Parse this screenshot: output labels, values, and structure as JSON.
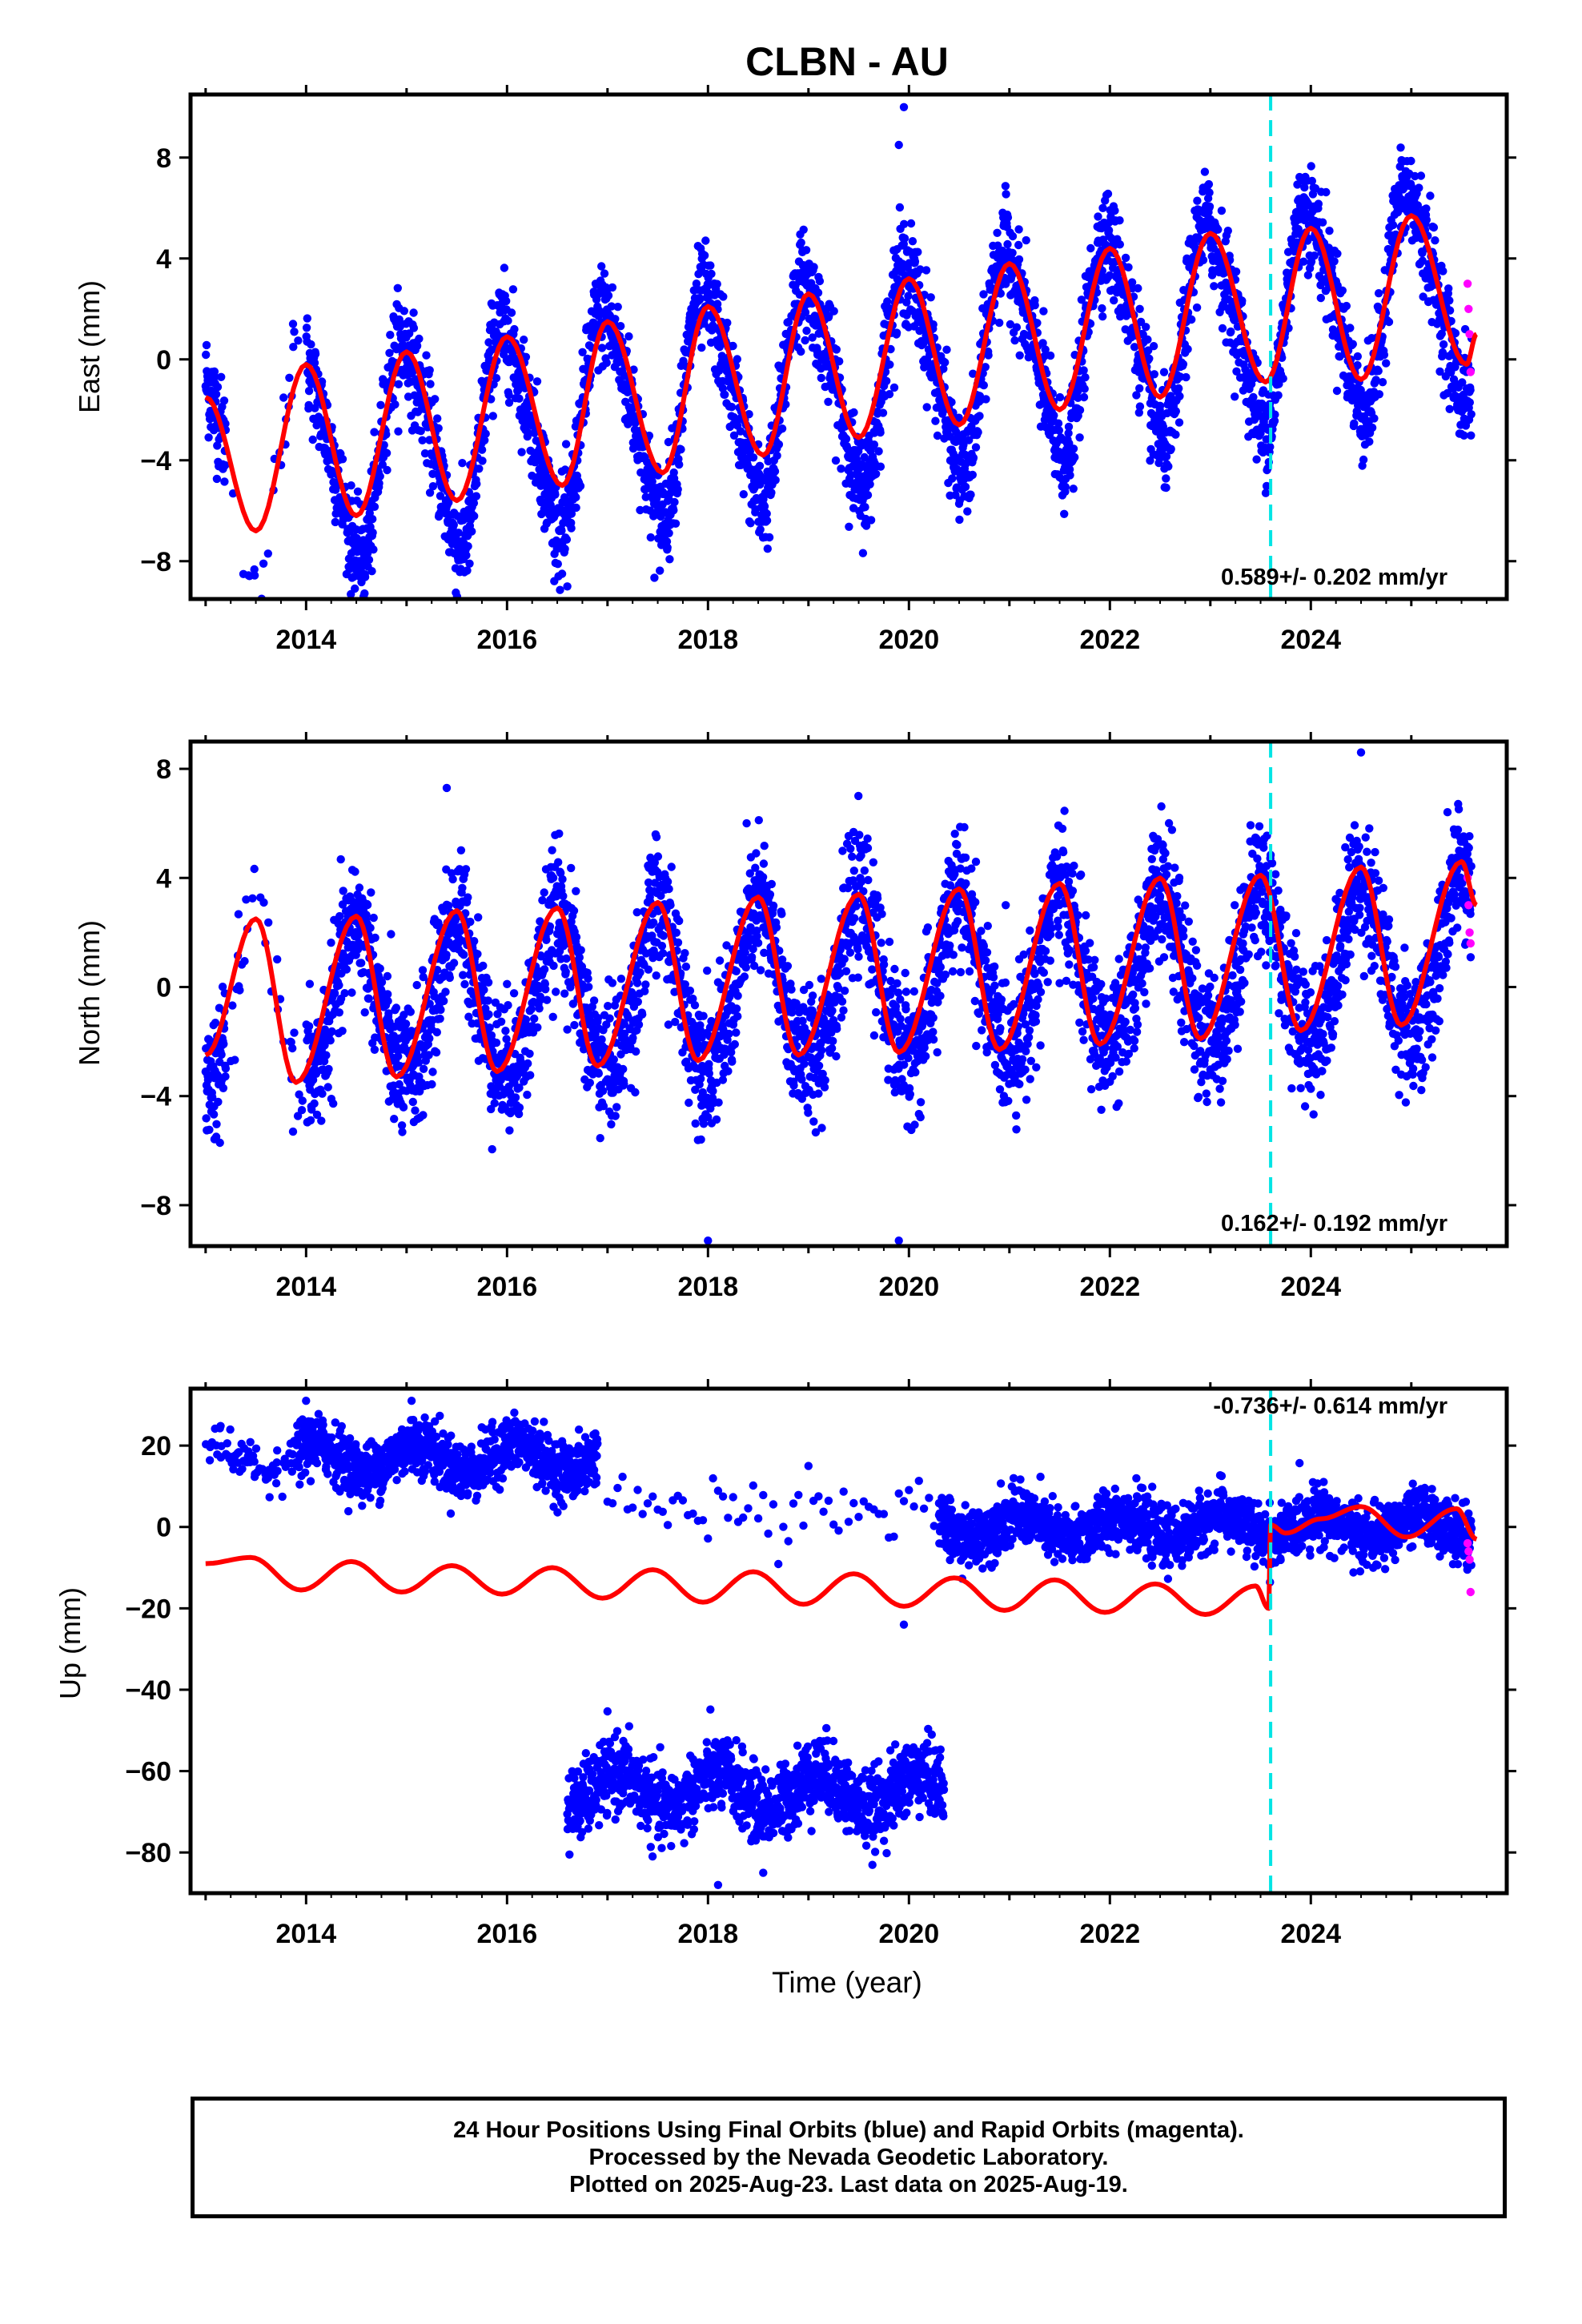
{
  "title": "CLBN - AU",
  "colors": {
    "final": "#0000ff",
    "rapid": "#ff00ff",
    "model": "#ff0000",
    "step": "#00e5e5"
  },
  "x_axis_label": "Time (year)",
  "panels": [
    {
      "ylabel": "East (mm)",
      "rate_text": "0.589+/- 0.202 mm/yr",
      "ylim": [
        -9.5,
        10.5
      ],
      "yticks": [
        -8,
        -4,
        0,
        4,
        8
      ],
      "ytick_labels": [
        "−8",
        "−4",
        "0",
        "4",
        "8"
      ]
    },
    {
      "ylabel": "North (mm)",
      "rate_text": "0.162+/- 0.192 mm/yr",
      "ylim": [
        -9.5,
        9
      ],
      "yticks": [
        -8,
        -4,
        0,
        4,
        8
      ],
      "ytick_labels": [
        "−8",
        "−4",
        "0",
        "4",
        "8"
      ]
    },
    {
      "ylabel": "Up (mm)",
      "rate_text": "-0.736+/- 0.614 mm/yr",
      "ylim": [
        -90,
        34
      ],
      "yticks": [
        -80,
        -60,
        -40,
        -20,
        0,
        20
      ],
      "ytick_labels": [
        "−80",
        "−60",
        "−40",
        "−20",
        "0",
        "20"
      ]
    }
  ],
  "xtick_labels": [
    "2014",
    "2016",
    "2018",
    "2020",
    "2022",
    "2024"
  ],
  "footer": {
    "line1": "24 Hour Positions Using Final Orbits (blue) and Rapid Orbits (magenta).",
    "line2": "Processed by the Nevada Geodetic Laboratory.",
    "line3": "Plotted on 2025-Aug-23. Last data on 2025-Aug-19."
  },
  "chart_data": [
    {
      "type": "scatter",
      "title": "CLBN - AU",
      "ylabel": "East (mm)",
      "xlim": [
        2012.85,
        2025.95
      ],
      "ylim": [
        -9.5,
        10.5
      ],
      "grid": false,
      "rate": "0.589+/- 0.202 mm/yr",
      "step_epoch": 2023.6,
      "series": [
        {
          "name": "Final Orbits (blue)",
          "kind": "points",
          "model": {
            "start": 2013.0,
            "end": 2025.6,
            "offset": -1.0,
            "trend": 0.589,
            "annual_amp": 4.0,
            "annual_peak": 0.0,
            "semi_amp": 0.7,
            "semi_peak": 0.35,
            "noise_sd": 1.0,
            "density_per_year": 330,
            "gap_from": 2013.2,
            "gap_to": 2014.0,
            "gap_density": 30
          },
          "notes_points": [
            [
              2019.95,
              10.0
            ],
            [
              2016.6,
              -9.0
            ],
            [
              2019.9,
              8.5
            ]
          ]
        },
        {
          "name": "Rapid Orbits (magenta)",
          "kind": "points",
          "values": [
            [
              2025.56,
              3.0
            ],
            [
              2025.57,
              2.0
            ],
            [
              2025.58,
              1.0
            ],
            [
              2025.59,
              -0.5
            ]
          ]
        },
        {
          "name": "model",
          "kind": "line",
          "color": "red",
          "samples": [
            [
              2013.0,
              -1.5
            ],
            [
              2013.5,
              -6.8
            ],
            [
              2014.0,
              -0.2
            ],
            [
              2014.5,
              -6.2
            ],
            [
              2015.0,
              0.3
            ],
            [
              2015.5,
              -5.6
            ],
            [
              2016.0,
              0.9
            ],
            [
              2016.55,
              -5.0
            ],
            [
              2017.0,
              1.5
            ],
            [
              2017.55,
              -4.5
            ],
            [
              2018.0,
              2.1
            ],
            [
              2018.55,
              -3.8
            ],
            [
              2019.0,
              2.6
            ],
            [
              2019.5,
              -3.1
            ],
            [
              2020.0,
              3.2
            ],
            [
              2020.5,
              -2.6
            ],
            [
              2021.0,
              3.8
            ],
            [
              2021.5,
              -2.0
            ],
            [
              2022.0,
              4.4
            ],
            [
              2022.5,
              -1.5
            ],
            [
              2023.0,
              5.0
            ],
            [
              2023.55,
              -0.9
            ],
            [
              2024.0,
              5.2
            ],
            [
              2024.5,
              -0.8
            ],
            [
              2025.0,
              5.7
            ],
            [
              2025.55,
              -0.2
            ],
            [
              2025.65,
              1.0
            ]
          ]
        }
      ]
    },
    {
      "type": "scatter",
      "ylabel": "North (mm)",
      "xlim": [
        2012.85,
        2025.95
      ],
      "ylim": [
        -9.5,
        9
      ],
      "grid": false,
      "rate": "0.162+/- 0.192 mm/yr",
      "step_epoch": 2023.6,
      "series": [
        {
          "name": "Final Orbits (blue)",
          "kind": "points",
          "model": {
            "start": 2013.0,
            "end": 2025.6,
            "offset": 0.0,
            "trend": 0.162,
            "annual_amp": 2.8,
            "annual_peak": 0.5,
            "semi_amp": 0.3,
            "semi_peak": 0.0,
            "noise_sd": 1.2,
            "density_per_year": 330,
            "gap_from": 2013.2,
            "gap_to": 2014.0,
            "gap_density": 30
          },
          "notes_points": [
            [
              2024.5,
              8.6
            ],
            [
              2015.4,
              7.3
            ],
            [
              2019.9,
              -9.3
            ],
            [
              2018.0,
              -9.3
            ]
          ]
        },
        {
          "name": "Rapid Orbits (magenta)",
          "kind": "points",
          "values": [
            [
              2025.56,
              4.0
            ],
            [
              2025.57,
              3.0
            ],
            [
              2025.58,
              2.0
            ],
            [
              2025.59,
              1.6
            ]
          ]
        },
        {
          "name": "model",
          "kind": "line",
          "color": "red",
          "samples": [
            [
              2013.0,
              -2.5
            ],
            [
              2013.5,
              2.5
            ],
            [
              2013.9,
              -3.5
            ],
            [
              2014.5,
              2.6
            ],
            [
              2014.9,
              -3.3
            ],
            [
              2015.5,
              2.8
            ],
            [
              2015.9,
              -3.1
            ],
            [
              2016.5,
              2.9
            ],
            [
              2016.9,
              -2.9
            ],
            [
              2017.5,
              3.1
            ],
            [
              2017.9,
              -2.7
            ],
            [
              2018.5,
              3.3
            ],
            [
              2018.9,
              -2.5
            ],
            [
              2019.5,
              3.4
            ],
            [
              2019.9,
              -2.4
            ],
            [
              2020.5,
              3.6
            ],
            [
              2020.9,
              -2.3
            ],
            [
              2021.5,
              3.8
            ],
            [
              2021.9,
              -2.1
            ],
            [
              2022.5,
              4.0
            ],
            [
              2022.9,
              -1.9
            ],
            [
              2023.5,
              4.1
            ],
            [
              2023.9,
              -1.6
            ],
            [
              2024.5,
              4.4
            ],
            [
              2024.9,
              -1.4
            ],
            [
              2025.5,
              4.6
            ],
            [
              2025.65,
              3.0
            ]
          ]
        }
      ]
    },
    {
      "type": "scatter",
      "ylabel": "Up (mm)",
      "xlabel": "Time (year)",
      "xlim": [
        2012.85,
        2025.95
      ],
      "ylim": [
        -90,
        34
      ],
      "grid": false,
      "rate": "-0.736+/- 0.614 mm/yr",
      "step_epoch": 2023.6,
      "series": [
        {
          "name": "Final Orbits (blue)",
          "kind": "points",
          "segments": [
            {
              "start": 2013.0,
              "end": 2016.9,
              "offset": 17.0,
              "annual_amp": 3.5,
              "noise_sd": 3.5,
              "density_per_year": 330,
              "sparse_from": 2013.0,
              "sparse_to": 2013.9,
              "sparse_density": 60
            },
            {
              "start": 2016.6,
              "end": 2020.35,
              "offset": -65.0,
              "annual_amp": 4.5,
              "noise_sd": 4.5,
              "density_per_year": 330
            },
            {
              "start": 2017.0,
              "end": 2020.3,
              "offset": 5.0,
              "annual_amp": 2.0,
              "noise_sd": 4.0,
              "density_per_year": 20
            },
            {
              "start": 2020.3,
              "end": 2025.6,
              "offset": 0.0,
              "annual_amp": 3.0,
              "noise_sd": 3.5,
              "density_per_year": 330
            }
          ],
          "notes_points": [
            [
              2014.0,
              31.0
            ],
            [
              2015.05,
              31.0
            ],
            [
              2019.95,
              -24.0
            ],
            [
              2018.1,
              -88.0
            ],
            [
              2018.55,
              -85.0
            ]
          ]
        },
        {
          "name": "Rapid Orbits (magenta)",
          "kind": "points",
          "values": [
            [
              2025.56,
              -4.0
            ],
            [
              2025.57,
              -6.0
            ],
            [
              2025.58,
              -8.0
            ],
            [
              2025.59,
              -16.0
            ]
          ]
        },
        {
          "name": "model",
          "kind": "line",
          "color": "red",
          "samples": [
            [
              2013.0,
              -9.0
            ],
            [
              2013.45,
              -7.5
            ],
            [
              2013.95,
              -15.5
            ],
            [
              2014.45,
              -8.5
            ],
            [
              2014.95,
              -16.0
            ],
            [
              2015.45,
              -9.5
            ],
            [
              2015.95,
              -16.5
            ],
            [
              2016.45,
              -10.0
            ],
            [
              2016.95,
              -17.5
            ],
            [
              2017.45,
              -10.5
            ],
            [
              2017.95,
              -18.5
            ],
            [
              2018.45,
              -11.0
            ],
            [
              2018.95,
              -19.0
            ],
            [
              2019.45,
              -11.5
            ],
            [
              2019.95,
              -19.5
            ],
            [
              2020.45,
              -12.5
            ],
            [
              2020.95,
              -20.5
            ],
            [
              2021.45,
              -13.0
            ],
            [
              2021.95,
              -21.0
            ],
            [
              2022.45,
              -14.0
            ],
            [
              2022.95,
              -21.5
            ],
            [
              2023.45,
              -14.5
            ],
            [
              2023.58,
              -20.0
            ],
            [
              2023.6,
              0.5
            ],
            [
              2023.75,
              -1.5
            ],
            [
              2024.1,
              2.0
            ],
            [
              2024.5,
              5.0
            ],
            [
              2024.95,
              -2.5
            ],
            [
              2025.45,
              4.5
            ],
            [
              2025.65,
              -3.0
            ]
          ]
        }
      ]
    }
  ]
}
